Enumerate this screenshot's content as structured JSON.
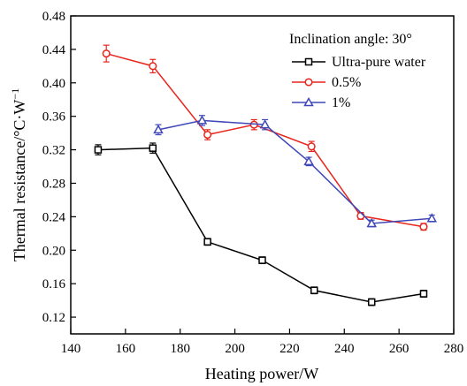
{
  "chart_data": {
    "type": "line",
    "xlabel": "Heating power/W",
    "ylabel_main": "Thermal resistance/°C·W",
    "ylabel_sup": "−1",
    "xlim": [
      140,
      280
    ],
    "ylim": [
      0.1,
      0.48
    ],
    "xticks": [
      140,
      160,
      180,
      200,
      220,
      240,
      260,
      280
    ],
    "yticks": [
      0.12,
      0.16,
      0.2,
      0.24,
      0.28,
      0.32,
      0.36,
      0.4,
      0.44,
      0.48
    ],
    "grid": false,
    "legend_title": "Inclination angle: 30°",
    "legend_position": "top-right",
    "series": [
      {
        "name": "Ultra-pure water",
        "color": "#000000",
        "marker": "square",
        "x": [
          150,
          170,
          190,
          210,
          229,
          250,
          269
        ],
        "y": [
          0.32,
          0.322,
          0.21,
          0.188,
          0.152,
          0.138,
          0.148
        ],
        "err": [
          0.006,
          0.006,
          0.004,
          0.004,
          0.004,
          0.004,
          0.004
        ]
      },
      {
        "name": "0.5%",
        "color": "#e8251d",
        "marker": "circle",
        "x": [
          153,
          170,
          190,
          207,
          228,
          246,
          269
        ],
        "y": [
          0.435,
          0.42,
          0.338,
          0.35,
          0.324,
          0.241,
          0.228
        ],
        "err": [
          0.01,
          0.008,
          0.006,
          0.006,
          0.006,
          0.004,
          0.004
        ]
      },
      {
        "name": "1%",
        "color": "#3f48b8",
        "marker": "triangle",
        "x": [
          172,
          188,
          211,
          227,
          250,
          272
        ],
        "y": [
          0.344,
          0.355,
          0.35,
          0.306,
          0.232,
          0.238
        ],
        "err": [
          0.006,
          0.006,
          0.006,
          0.005,
          0.004,
          0.004
        ]
      }
    ]
  }
}
